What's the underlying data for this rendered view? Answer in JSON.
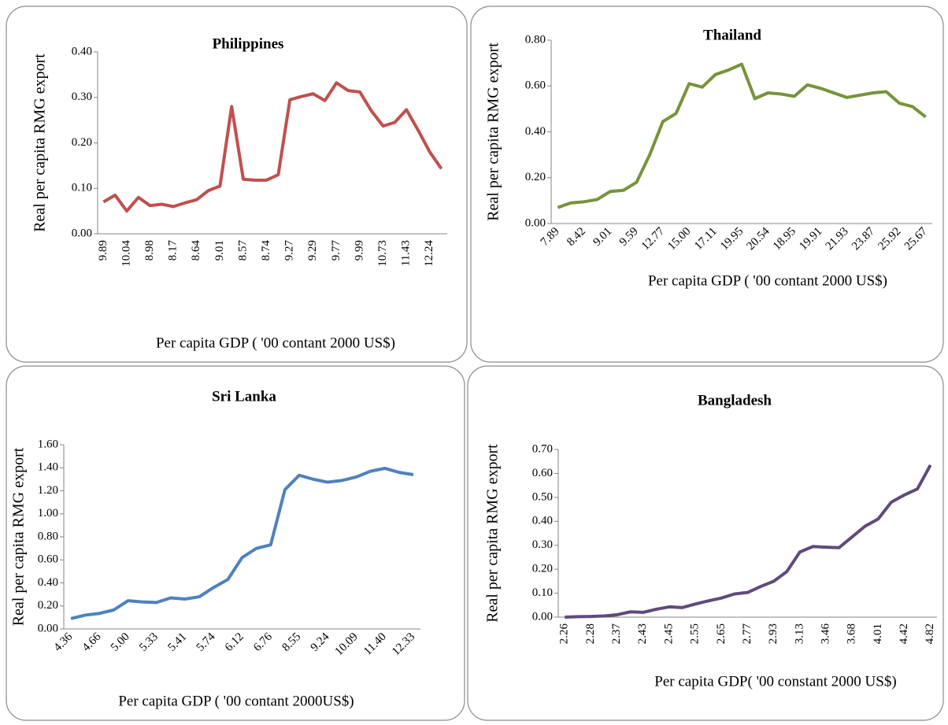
{
  "chart_data": [
    {
      "type": "line",
      "title": "Philippines",
      "y_label": "Real per capita RMG export",
      "x_label": "Per capita GDP ( '00 contant 2000 US$)",
      "color": "#c0504d",
      "categories": [
        "9.89",
        null,
        "10.04",
        null,
        "8.98",
        null,
        "8.17",
        null,
        "8.64",
        null,
        "9.01",
        null,
        "8.57",
        null,
        "8.74",
        null,
        "9.27",
        null,
        "9.29",
        null,
        "9.77",
        null,
        "9.99",
        null,
        "10.73",
        null,
        "11.43",
        null,
        "12.24",
        null
      ],
      "values": [
        0.07,
        0.085,
        0.05,
        0.08,
        0.062,
        0.065,
        0.06,
        0.068,
        0.075,
        0.095,
        0.105,
        0.28,
        0.12,
        0.118,
        0.118,
        0.13,
        0.295,
        0.302,
        0.308,
        0.293,
        0.332,
        0.315,
        0.312,
        0.27,
        0.237,
        0.245,
        0.273,
        0.228,
        0.18,
        0.143
      ],
      "ylim": [
        0,
        0.4
      ],
      "yticks": [
        {
          "value": 0,
          "label": "0.00"
        },
        {
          "value": 0.1,
          "label": "0.10"
        },
        {
          "value": 0.2,
          "label": "0.20"
        },
        {
          "value": 0.3,
          "label": "0.30"
        },
        {
          "value": 0.4,
          "label": "0.40"
        }
      ]
    },
    {
      "type": "line",
      "title": "Thailand",
      "y_label": "Real per capita RMG export",
      "x_label": "Per capita GDP ( '00 contant 2000 US$)",
      "color": "#77933c",
      "categories": [
        "7.89",
        null,
        "8.42",
        null,
        "9.01",
        null,
        "9.59",
        null,
        "12.77",
        null,
        "15.00",
        null,
        "17.11",
        null,
        "19.95",
        null,
        "20.54",
        null,
        "18.95",
        null,
        "19.91",
        null,
        "21.93",
        null,
        "23.87",
        null,
        "25.92",
        null,
        "25.67"
      ],
      "values": [
        0.07,
        0.09,
        0.095,
        0.105,
        0.14,
        0.145,
        0.18,
        0.3,
        0.445,
        0.48,
        0.61,
        0.595,
        0.65,
        0.67,
        0.695,
        0.545,
        0.57,
        0.565,
        0.555,
        0.605,
        0.59,
        0.57,
        0.55,
        0.56,
        0.57,
        0.575,
        0.525,
        0.51,
        0.465
      ],
      "ylim": [
        0,
        0.8
      ],
      "yticks": [
        {
          "value": 0,
          "label": "0.00"
        },
        {
          "value": 0.2,
          "label": "0.20"
        },
        {
          "value": 0.4,
          "label": "0.40"
        },
        {
          "value": 0.6,
          "label": "0.60"
        },
        {
          "value": 0.8,
          "label": "0.80"
        }
      ]
    },
    {
      "type": "line",
      "title": "Sri Lanka",
      "y_label": "Real per capita RMG export",
      "x_label": "Per capita GDP ( '00 contant 2000US$)",
      "color": "#4f81bd",
      "categories": [
        "4.36",
        null,
        "4.66",
        null,
        "5.00",
        null,
        "5.33",
        null,
        "5.41",
        null,
        "5.74",
        null,
        "6.12",
        null,
        "6.76",
        null,
        "8.55",
        null,
        "9.24",
        null,
        "10.09",
        null,
        "11.40",
        null,
        "12.33"
      ],
      "values": [
        0.09,
        0.12,
        0.135,
        0.165,
        0.245,
        0.235,
        0.23,
        0.27,
        0.26,
        0.28,
        0.36,
        0.43,
        0.62,
        0.7,
        0.73,
        1.21,
        1.335,
        1.3,
        1.275,
        1.29,
        1.32,
        1.37,
        1.395,
        1.36,
        1.34
      ],
      "ylim": [
        0,
        1.6
      ],
      "yticks": [
        {
          "value": 0,
          "label": "0.00"
        },
        {
          "value": 0.2,
          "label": "0.20"
        },
        {
          "value": 0.4,
          "label": "0.40"
        },
        {
          "value": 0.6,
          "label": "0.60"
        },
        {
          "value": 0.8,
          "label": "0.80"
        },
        {
          "value": 1,
          "label": "1.00"
        },
        {
          "value": 1.2,
          "label": "1.20"
        },
        {
          "value": 1.4,
          "label": "1.40"
        },
        {
          "value": 1.6,
          "label": "1.60"
        }
      ]
    },
    {
      "type": "line",
      "title": "Bangladesh",
      "y_label": "Real per capita RMG export",
      "x_label": "Per capita GDP( '00 constant 2000 US$)",
      "color": "#604a7b",
      "categories": [
        "2.26",
        null,
        "2.28",
        null,
        "2.37",
        null,
        "2.43",
        null,
        "2.45",
        null,
        "2.55",
        null,
        "2.65",
        null,
        "2.77",
        null,
        "2.93",
        null,
        "3.13",
        null,
        "3.46",
        null,
        "3.68",
        null,
        "4.01",
        null,
        "4.42",
        null,
        "4.82"
      ],
      "values": [
        0.0,
        0.002,
        0.003,
        0.005,
        0.01,
        0.022,
        0.02,
        0.033,
        0.043,
        0.04,
        0.055,
        0.068,
        0.08,
        0.097,
        0.103,
        0.128,
        0.15,
        0.19,
        0.272,
        0.295,
        0.292,
        0.29,
        0.335,
        0.38,
        0.41,
        0.48,
        0.51,
        0.535,
        0.635
      ],
      "ylim": [
        0,
        0.7
      ],
      "yticks": [
        {
          "value": 0,
          "label": "0.00"
        },
        {
          "value": 0.1,
          "label": "0.10"
        },
        {
          "value": 0.2,
          "label": "0.20"
        },
        {
          "value": 0.3,
          "label": "0.30"
        },
        {
          "value": 0.4,
          "label": "0.40"
        },
        {
          "value": 0.5,
          "label": "0.50"
        },
        {
          "value": 0.6,
          "label": "0.60"
        },
        {
          "value": 0.7,
          "label": "0.70"
        }
      ]
    }
  ]
}
